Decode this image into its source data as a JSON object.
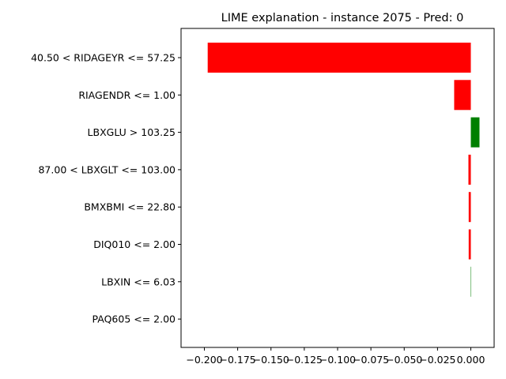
{
  "chart_data": {
    "type": "bar",
    "orientation": "horizontal",
    "title": "LIME explanation - instance 2075 - Pred: 0",
    "xlabel": "",
    "ylabel": "",
    "xlim": [
      -0.2175,
      0.0175
    ],
    "grid": false,
    "legend": "none",
    "categories": [
      "40.50 < RIDAGEYR <= 57.25",
      "RIAGENDR <= 1.00",
      "LBXGLU > 103.25",
      "87.00 < LBXGLT <= 103.00",
      "BMXBMI <= 22.80",
      "DIQ010 <= 2.00",
      "LBXIN <= 6.03",
      "PAQ605 <= 2.00"
    ],
    "values": [
      -0.1975,
      -0.0125,
      0.0065,
      -0.0018,
      -0.0016,
      -0.0016,
      0.0003,
      0.0
    ],
    "x_ticks": [
      -0.2,
      -0.175,
      -0.15,
      -0.125,
      -0.1,
      -0.075,
      -0.05,
      -0.025,
      0.0
    ],
    "x_tick_labels": [
      "−0.200",
      "−0.175",
      "−0.150",
      "−0.125",
      "−0.100",
      "−0.075",
      "−0.050",
      "−0.025",
      "0.000"
    ],
    "colors": {
      "positive": "#008000",
      "negative": "#ff0000"
    }
  }
}
